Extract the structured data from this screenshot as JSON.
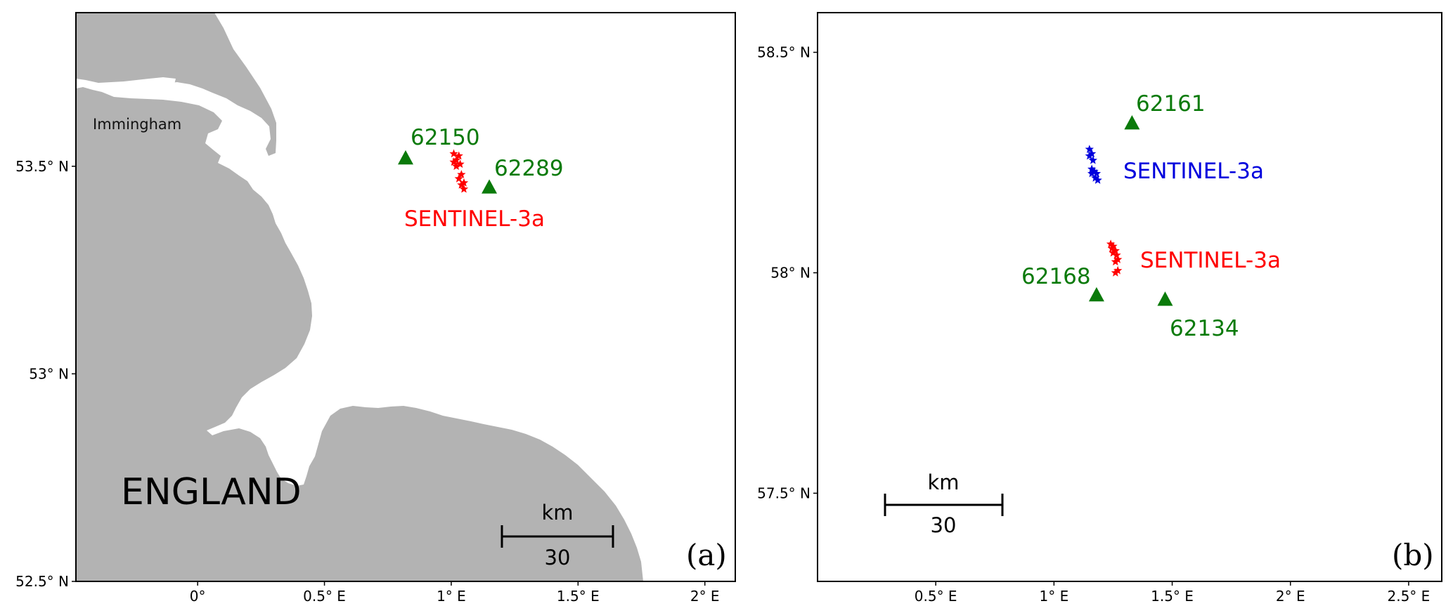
{
  "panels": {
    "a": {
      "label": "(a)",
      "country": "ENGLAND",
      "place": "Immingham",
      "scalebar": {
        "unit": "km",
        "length": "30"
      },
      "x_ticks": [
        "0°",
        "0.5° E",
        "1° E",
        "1.5° E",
        "2° E"
      ],
      "y_ticks": [
        "53.5° N",
        "53° N",
        "52.5° N"
      ],
      "xlim": [
        -0.48,
        2.12
      ],
      "ylim": [
        52.5,
        53.87
      ],
      "stations": [
        {
          "id": "62150",
          "lon": 0.82,
          "lat": 53.52
        },
        {
          "id": "62289",
          "lon": 1.15,
          "lat": 53.45
        }
      ],
      "satellite": {
        "label": "SENTINEL-3a",
        "color": "#ff0000",
        "points": [
          [
            1.01,
            53.53
          ],
          [
            1.03,
            53.525
          ],
          [
            1.02,
            53.515
          ],
          [
            1.01,
            53.51
          ],
          [
            1.035,
            53.505
          ],
          [
            1.02,
            53.5
          ],
          [
            1.04,
            53.48
          ],
          [
            1.03,
            53.47
          ],
          [
            1.05,
            53.46
          ],
          [
            1.04,
            53.455
          ],
          [
            1.05,
            53.445
          ]
        ]
      }
    },
    "b": {
      "label": "(b)",
      "scalebar": {
        "unit": "km",
        "length": "30"
      },
      "x_ticks": [
        "0.5° E",
        "1° E",
        "1.5° E",
        "2° E",
        "2.5° E"
      ],
      "y_ticks": [
        "58.5° N",
        "58° N",
        "57.5° N"
      ],
      "xlim": [
        0.0,
        2.64
      ],
      "ylim": [
        57.3,
        58.59
      ],
      "stations": [
        {
          "id": "62161",
          "lon": 1.33,
          "lat": 58.34
        },
        {
          "id": "62168",
          "lon": 1.18,
          "lat": 57.95
        },
        {
          "id": "62134",
          "lon": 1.47,
          "lat": 57.94
        }
      ],
      "satellites": [
        {
          "label": "SENTINEL-3a",
          "color": "#0000dd",
          "points": [
            [
              1.15,
              58.28
            ],
            [
              1.16,
              58.27
            ],
            [
              1.15,
              58.265
            ],
            [
              1.165,
              58.255
            ],
            [
              1.16,
              58.235
            ],
            [
              1.17,
              58.23
            ],
            [
              1.18,
              58.225
            ],
            [
              1.16,
              58.225
            ],
            [
              1.175,
              58.215
            ],
            [
              1.185,
              58.21
            ]
          ]
        },
        {
          "label": "SENTINEL-3a",
          "color": "#ff0000",
          "points": [
            [
              1.24,
              58.065
            ],
            [
              1.25,
              58.06
            ],
            [
              1.245,
              58.055
            ],
            [
              1.26,
              58.05
            ],
            [
              1.25,
              58.045
            ],
            [
              1.265,
              58.04
            ],
            [
              1.27,
              58.03
            ],
            [
              1.26,
              58.025
            ],
            [
              1.27,
              58.005
            ],
            [
              1.26,
              58.0
            ]
          ]
        }
      ]
    }
  },
  "colors": {
    "land": "#b3b3b3",
    "station": "#0a7a0a"
  }
}
